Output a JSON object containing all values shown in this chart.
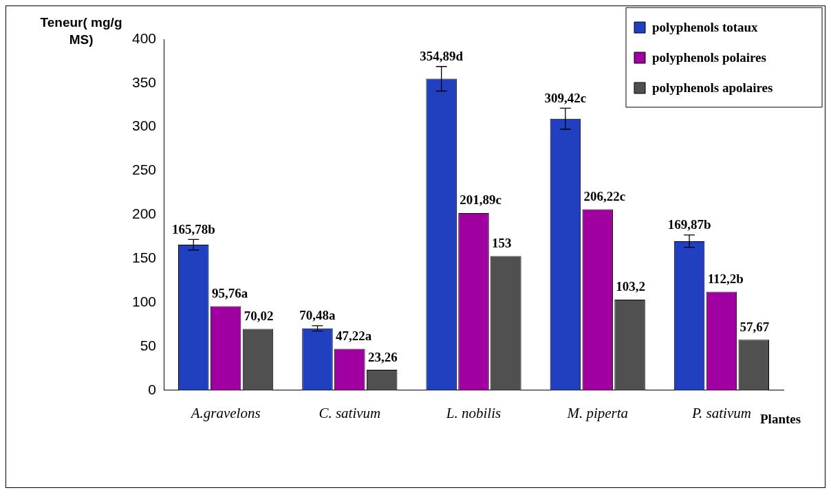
{
  "chart_data": {
    "type": "bar",
    "ylabel": "Teneur( mg/g MS)",
    "xlabel": "Plantes",
    "categories": [
      "A.gravelons",
      "C. sativum",
      "L. nobilis",
      "M. piperta",
      "P. sativum"
    ],
    "ylim": [
      0,
      400
    ],
    "yticks": [
      0,
      50,
      100,
      150,
      200,
      250,
      300,
      350,
      400
    ],
    "grid": false,
    "legend": "top right",
    "series": [
      {
        "name": "polyphenols totaux",
        "color": "#2040c0",
        "values": [
          165.78,
          70.48,
          354.89,
          309.42,
          169.87
        ],
        "errors": [
          6,
          3,
          14,
          12,
          7
        ],
        "value_labels": [
          "165,78b",
          "70,48a",
          "354,89d",
          "309,42c",
          "169,87b"
        ]
      },
      {
        "name": "polyphenols polaires",
        "color": "#a000a0",
        "values": [
          95.76,
          47.22,
          201.89,
          206.22,
          112.2
        ],
        "value_labels": [
          "95,76a",
          "47,22a",
          "201,89c",
          "206,22c",
          "112,2b"
        ]
      },
      {
        "name": "polyphenols apolaires",
        "color": "#505050",
        "values": [
          70.02,
          23.26,
          153,
          103.2,
          57.67
        ],
        "value_labels": [
          "70,02",
          "23,26",
          "153",
          "103,2",
          "57,67"
        ]
      }
    ]
  }
}
